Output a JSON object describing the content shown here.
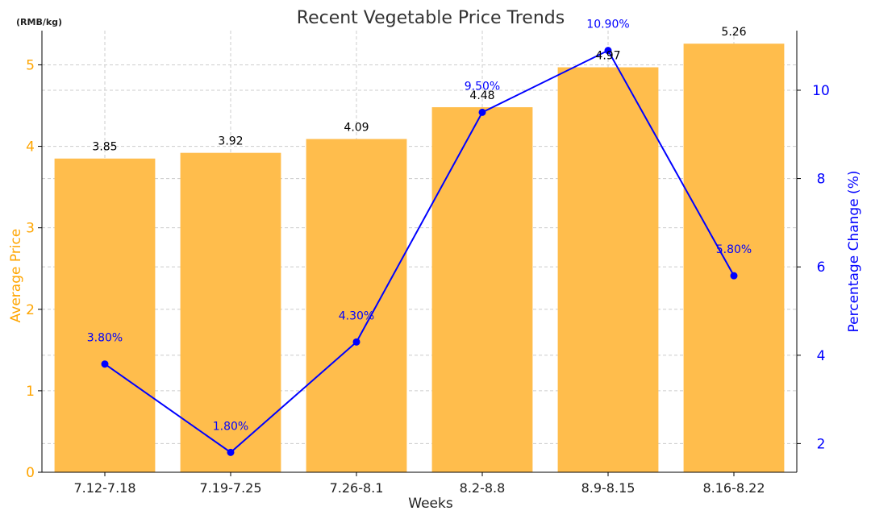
{
  "chart_data": {
    "type": "bar",
    "title": "Recent Vegetable Price Trends",
    "unit_note": "(RMB/kg)",
    "xlabel": "Weeks",
    "categories": [
      "7.12-7.18",
      "7.19-7.25",
      "7.26-8.1",
      "8.2-8.8",
      "8.9-8.15",
      "8.16-8.22"
    ],
    "series": [
      {
        "name": "Average Price",
        "type": "bar",
        "axis": "left",
        "values": [
          3.85,
          3.92,
          4.09,
          4.48,
          4.97,
          5.26
        ],
        "labels": [
          "3.85",
          "3.92",
          "4.09",
          "4.48",
          "4.97",
          "5.26"
        ],
        "color": "#ffbd4c"
      },
      {
        "name": "Percentage Change (%)",
        "type": "line",
        "axis": "right",
        "values": [
          3.8,
          1.8,
          4.3,
          9.5,
          10.9,
          5.8
        ],
        "labels": [
          "3.80%",
          "1.80%",
          "4.30%",
          "9.50%",
          "10.90%",
          "5.80%"
        ],
        "color": "#0000ff"
      }
    ],
    "y_left": {
      "label": "Average Price",
      "ylim": [
        0,
        5.42
      ],
      "ticks": [
        "0",
        "1",
        "2",
        "3",
        "4",
        "5"
      ]
    },
    "y_right": {
      "label": "Percentage Change (%)",
      "ylim": [
        1.35,
        11.35
      ],
      "ticks": [
        "2",
        "4",
        "6",
        "8",
        "10"
      ]
    },
    "grid": true,
    "colors": {
      "left_axis": "#ffa500",
      "right_axis": "#0000ff",
      "bar": "#ffbd4c",
      "line": "#0000ff"
    }
  }
}
